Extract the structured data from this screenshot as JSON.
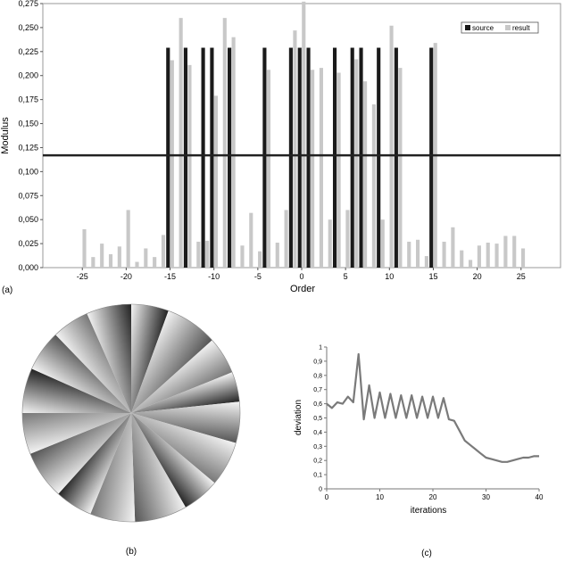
{
  "chart_data": [
    {
      "type": "bar",
      "panel_label": "(a)",
      "xlabel": "Order",
      "ylabel": "Modulus",
      "xlim": [
        -29.5,
        29.5
      ],
      "ylim": [
        0,
        0.275
      ],
      "xticks": [
        -25,
        -20,
        -15,
        -10,
        -5,
        0,
        5,
        10,
        15,
        20,
        25
      ],
      "yticks": [
        "0,000",
        "0,025",
        "0,050",
        "0,075",
        "0,100",
        "0,125",
        "0,150",
        "0,175",
        "0,200",
        "0,225",
        "0,250",
        "0,275"
      ],
      "legend": {
        "placement": "top-right",
        "entries": [
          "source",
          "result"
        ]
      },
      "threshold_line": 0.117,
      "series": [
        {
          "name": "source",
          "color": "#1a1a1a",
          "x": [
            -15,
            -13,
            -11,
            -10,
            -8,
            -4,
            -1,
            0,
            1,
            4,
            6,
            7,
            9,
            11,
            15
          ],
          "values": [
            0.229,
            0.229,
            0.229,
            0.229,
            0.229,
            0.229,
            0.229,
            0.229,
            0.229,
            0.229,
            0.229,
            0.229,
            0.229,
            0.229,
            0.229
          ]
        },
        {
          "name": "result",
          "color": "#c8c8c8",
          "x": [
            -25,
            -24,
            -23,
            -22,
            -21,
            -20,
            -19,
            -18,
            -17,
            -16,
            -15,
            -14,
            -13,
            -12,
            -11,
            -10,
            -9,
            -8,
            -7,
            -6,
            -5,
            -4,
            -3,
            -2,
            -1,
            0,
            1,
            2,
            3,
            4,
            5,
            6,
            7,
            8,
            9,
            10,
            11,
            12,
            13,
            14,
            15,
            16,
            17,
            18,
            19,
            20,
            21,
            22,
            23,
            24,
            25
          ],
          "values": [
            0.04,
            0.011,
            0.025,
            0.014,
            0.022,
            0.06,
            0.006,
            0.02,
            0.011,
            0.034,
            0.216,
            0.26,
            0.211,
            0.027,
            0.028,
            0.179,
            0.26,
            0.24,
            0.023,
            0.057,
            0.017,
            0.206,
            0.026,
            0.06,
            0.247,
            0.277,
            0.206,
            0.208,
            0.05,
            0.203,
            0.06,
            0.217,
            0.194,
            0.17,
            0.05,
            0.252,
            0.208,
            0.027,
            0.029,
            0.012,
            0.234,
            0.027,
            0.042,
            0.018,
            0.008,
            0.023,
            0.026,
            0.025,
            0.033,
            0.033,
            0.02
          ]
        }
      ]
    },
    {
      "type": "pie",
      "panel_label": "(b)",
      "segments": 16
    },
    {
      "type": "line",
      "panel_label": "(c)",
      "xlabel": "iterations",
      "ylabel": "deviation",
      "xlim": [
        0,
        40
      ],
      "ylim": [
        0,
        1
      ],
      "xticks": [
        0,
        10,
        20,
        30,
        40
      ],
      "yticks": [
        "0",
        "0,1",
        "0,2",
        "0,3",
        "0,4",
        "0,5",
        "0,6",
        "0,7",
        "0,8",
        "0,9",
        "1"
      ],
      "series": [
        {
          "color": "#7a7a7a",
          "x": [
            0,
            1,
            2,
            3,
            4,
            5,
            6,
            7,
            8,
            9,
            10,
            11,
            12,
            13,
            14,
            15,
            16,
            17,
            18,
            19,
            20,
            21,
            22,
            23,
            24,
            25,
            26,
            27,
            28,
            29,
            30,
            31,
            32,
            33,
            34,
            35,
            36,
            37,
            38,
            39,
            40
          ],
          "values": [
            0.6,
            0.57,
            0.61,
            0.6,
            0.65,
            0.61,
            0.95,
            0.49,
            0.73,
            0.5,
            0.68,
            0.5,
            0.67,
            0.5,
            0.66,
            0.5,
            0.66,
            0.5,
            0.65,
            0.5,
            0.65,
            0.5,
            0.64,
            0.49,
            0.48,
            0.41,
            0.34,
            0.31,
            0.28,
            0.25,
            0.22,
            0.21,
            0.2,
            0.19,
            0.19,
            0.2,
            0.21,
            0.22,
            0.22,
            0.23,
            0.23
          ]
        }
      ]
    }
  ]
}
